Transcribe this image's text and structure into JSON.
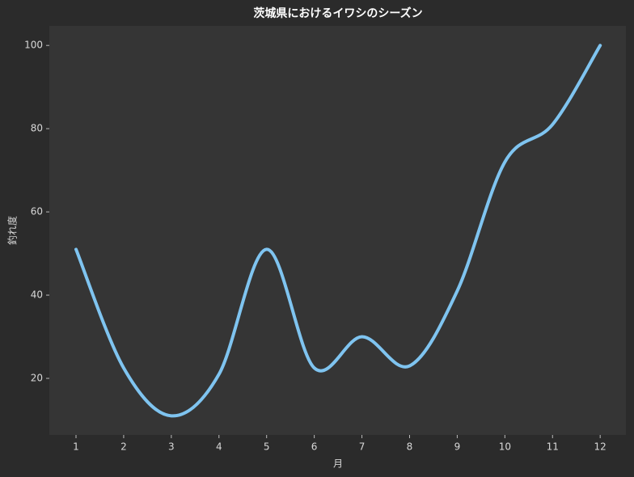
{
  "chart_data": {
    "type": "line",
    "title": "茨城県におけるイワシのシーズン",
    "x_label": "月",
    "y_label": "釣れ度",
    "x": [
      1,
      2,
      3,
      4,
      5,
      6,
      7,
      8,
      9,
      10,
      11,
      12
    ],
    "series": [
      {
        "name": "釣れ度",
        "color": "#7fc4f0",
        "values": [
          51,
          22.5,
          11,
          21,
          51,
          22.5,
          30,
          23,
          41,
          72,
          81,
          100
        ]
      }
    ],
    "xlim": [
      0.44,
      12.54
    ],
    "ylim": [
      6.4,
      104.7
    ],
    "xticks": [
      1,
      2,
      3,
      4,
      5,
      6,
      7,
      8,
      9,
      10,
      11,
      12
    ],
    "yticks": [
      20,
      40,
      60,
      80,
      100
    ],
    "grid": false,
    "legend": false
  }
}
